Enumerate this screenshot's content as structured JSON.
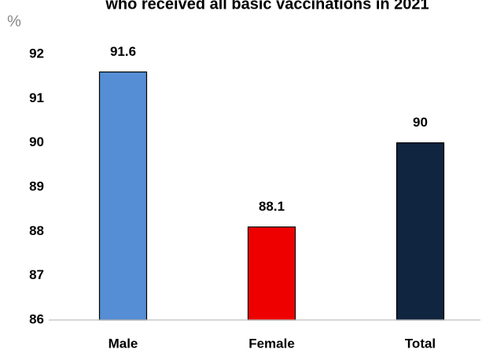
{
  "chart_data": {
    "type": "bar",
    "title": "who received all basic vaccinations in 2021",
    "ylabel": "%",
    "categories": [
      "Male",
      "Female",
      "Total"
    ],
    "values": [
      91.6,
      88.1,
      90
    ],
    "colors": [
      "#558ed5",
      "#ee0000",
      "#10253f"
    ],
    "ylim": [
      86,
      92
    ],
    "yticks": [
      86,
      87,
      88,
      89,
      90,
      91,
      92
    ],
    "grid": false
  }
}
